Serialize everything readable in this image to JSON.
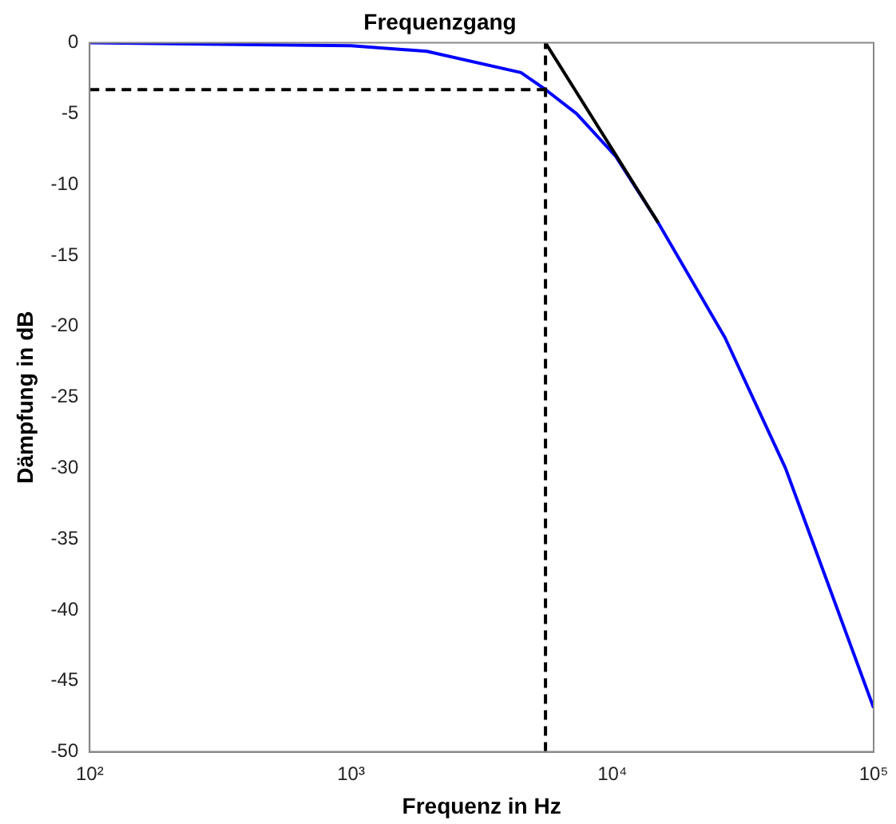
{
  "chart_data": {
    "type": "line",
    "title": "Frequenzgang",
    "xlabel": "Frequenz in Hz",
    "ylabel": "Dämpfung in dB",
    "log": "x",
    "grid": false,
    "legend": false,
    "marker": "none",
    "xlim": [
      100,
      100000
    ],
    "xticks": [
      {
        "value": 100,
        "label": "10²"
      },
      {
        "value": 1000,
        "label": "10³"
      },
      {
        "value": 10000,
        "label": "10⁴"
      },
      {
        "value": 100000,
        "label": "10⁵"
      }
    ],
    "ylim": [
      -50,
      0
    ],
    "yticks": [
      -50,
      -45,
      -40,
      -35,
      -30,
      -25,
      -20,
      -15,
      -10,
      -5,
      0
    ],
    "series": [
      {
        "color": "#0000ff",
        "line_style": "solid",
        "x": [
          100,
          1000,
          1950,
          4470,
          5550,
          7300,
          10300,
          15000,
          27000,
          46000,
          100000
        ],
        "values": [
          0,
          -0.2,
          -0.6,
          -2.1,
          -3.3,
          -5,
          -8,
          -12.7,
          -20.8,
          -30,
          -46.9
        ]
      },
      {
        "color": "#000000",
        "line_style": "solid",
        "x": [
          5550,
          15000
        ],
        "values": [
          0,
          -12.7
        ]
      },
      {
        "color": "#000000",
        "line_style": "dashed",
        "x": [
          100,
          5550
        ],
        "values": [
          -3.3,
          -3.3
        ]
      },
      {
        "color": "#000000",
        "line_style": "dashed",
        "x": [
          5550,
          5550
        ],
        "values": [
          -50,
          0
        ]
      }
    ]
  }
}
